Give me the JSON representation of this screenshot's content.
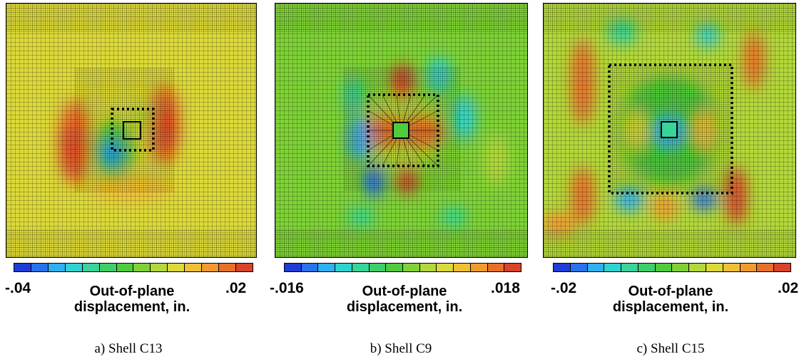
{
  "colormap": [
    "#1f3dd6",
    "#2a72ea",
    "#2fb0f0",
    "#2ed3d0",
    "#38d49a",
    "#3fcf6a",
    "#4fcb3e",
    "#7fd236",
    "#b3d83a",
    "#dcd93a",
    "#f0c036",
    "#f09a30",
    "#e8702a",
    "#d8432a"
  ],
  "colorbar_title_line1": "Out-of-plane",
  "colorbar_title_line2": "displacement, in.",
  "panels": [
    {
      "caption": "a) Shell C13",
      "min_label": "-.04",
      "max_label": ".02",
      "min": -0.04,
      "max": 0.02,
      "background_level": 0.73
    },
    {
      "caption": "b) Shell C9",
      "min_label": "-.016",
      "max_label": ".018",
      "min": -0.016,
      "max": 0.018,
      "background_level": 0.5
    },
    {
      "caption": "c) Shell C15",
      "min_label": "-.02",
      "max_label": ".02",
      "min": -0.02,
      "max": 0.02,
      "background_level": 0.6
    }
  ]
}
